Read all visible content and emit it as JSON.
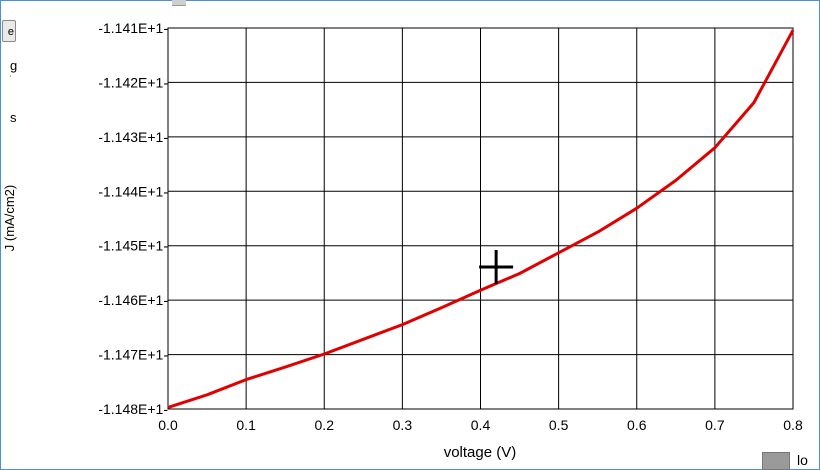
{
  "left_strip": {
    "button_label": "e",
    "letter_1": "g",
    "letter_2": "s"
  },
  "legend": {
    "label": "lo"
  },
  "chart_data": {
    "type": "line",
    "title": "",
    "xlabel": "voltage (V)",
    "ylabel": "J (mA/cm2)",
    "xlim": [
      0.0,
      0.8
    ],
    "ylim": [
      -11.48,
      -11.41
    ],
    "grid": true,
    "x_ticks": [
      0.0,
      0.1,
      0.2,
      0.3,
      0.4,
      0.5,
      0.6,
      0.7,
      0.8
    ],
    "x_tick_labels": [
      "0.0",
      "0.1",
      "0.2",
      "0.3",
      "0.4",
      "0.5",
      "0.6",
      "0.7",
      "0.8"
    ],
    "y_ticks": [
      -11.41,
      -11.42,
      -11.43,
      -11.44,
      -11.45,
      -11.46,
      -11.47,
      -11.48
    ],
    "y_tick_labels": [
      "-1.141E+1-",
      "-1.142E+1-",
      "-1.143E+1-",
      "-1.144E+1-",
      "-1.145E+1-",
      "-1.146E+1-",
      "-1.147E+1-",
      "-1.148E+1-"
    ],
    "series": [
      {
        "color": "#e00000",
        "x": [
          0.0,
          0.05,
          0.1,
          0.15,
          0.2,
          0.25,
          0.3,
          0.35,
          0.4,
          0.45,
          0.5,
          0.55,
          0.6,
          0.65,
          0.7,
          0.75,
          0.8
        ],
        "y": [
          -11.4797,
          -11.4774,
          -11.4746,
          -11.4723,
          -11.4699,
          -11.4672,
          -11.4645,
          -11.4614,
          -11.4582,
          -11.4551,
          -11.4513,
          -11.4475,
          -11.4431,
          -11.438,
          -11.432,
          -11.4237,
          -11.4104
        ]
      }
    ],
    "cursor": {
      "x": 0.42,
      "y": -11.4539
    }
  }
}
